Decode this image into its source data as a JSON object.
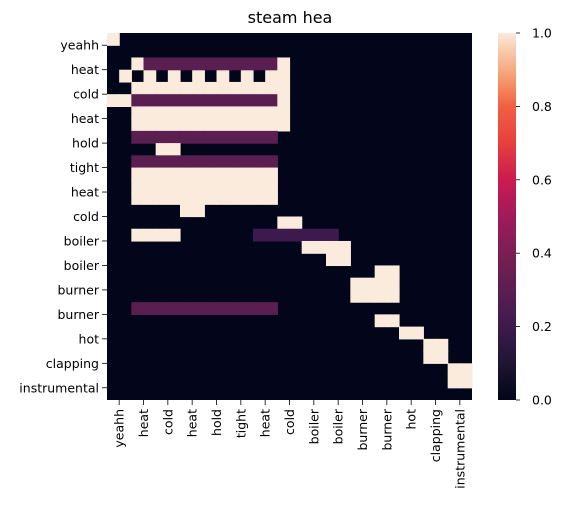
{
  "chart_data": {
    "type": "heatmap",
    "title": "steam hea",
    "xlabel": "",
    "ylabel": "",
    "row_labels": [
      "yeahh",
      "heat",
      "cold",
      "heat",
      "hold",
      "tight",
      "heat",
      "cold",
      "boiler",
      "boiler",
      "burner",
      "burner",
      "hot",
      "clapping",
      "instrumental"
    ],
    "col_labels": [
      "yeahh",
      "heat",
      "cold",
      "heat",
      "hold",
      "tight",
      "heat",
      "cold",
      "boiler",
      "boiler",
      "burner",
      "burner",
      "hot",
      "clapping",
      "instrumental"
    ],
    "colorbar": {
      "range": [
        0.0,
        1.0
      ],
      "ticks": [
        0.0,
        0.2,
        0.4,
        0.6,
        0.8,
        1.0
      ],
      "tick_labels": [
        "0.0",
        "0.2",
        "0.4",
        "0.6",
        "0.8",
        "1.0"
      ]
    },
    "colormap_stops": [
      [
        0.0,
        "#03051a"
      ],
      [
        0.1,
        "#1f1533"
      ],
      [
        0.2,
        "#3d1a4d"
      ],
      [
        0.3,
        "#5b1e51"
      ],
      [
        0.4,
        "#7a1f53"
      ],
      [
        0.5,
        "#a11a5b"
      ],
      [
        0.6,
        "#cb1b4f"
      ],
      [
        0.7,
        "#e83f3f"
      ],
      [
        0.8,
        "#f06043"
      ],
      [
        0.85,
        "#f4875e"
      ],
      [
        0.9,
        "#f6aa82"
      ],
      [
        0.95,
        "#f7c9aa"
      ],
      [
        1.0,
        "#faebdd"
      ]
    ],
    "grid_resolution": 30,
    "cells": [
      [
        0,
        0,
        1.0
      ],
      [
        2,
        2,
        1.0
      ],
      [
        3,
        1,
        1.0
      ],
      [
        3,
        3,
        1.0
      ],
      [
        3,
        5,
        1.0
      ],
      [
        3,
        7,
        1.0
      ],
      [
        3,
        9,
        1.0
      ],
      [
        3,
        11,
        1.0
      ],
      [
        3,
        13,
        1.0
      ],
      [
        2,
        3,
        0.3
      ],
      [
        2,
        4,
        0.3
      ],
      [
        2,
        5,
        0.3
      ],
      [
        2,
        6,
        0.3
      ],
      [
        2,
        7,
        0.3
      ],
      [
        2,
        8,
        0.3
      ],
      [
        2,
        9,
        0.3
      ],
      [
        2,
        10,
        0.3
      ],
      [
        2,
        11,
        0.3
      ],
      [
        2,
        12,
        0.3
      ],
      [
        2,
        13,
        0.3
      ],
      [
        4,
        2,
        1.0
      ],
      [
        4,
        3,
        1.0
      ],
      [
        4,
        4,
        1.0
      ],
      [
        4,
        5,
        1.0
      ],
      [
        4,
        6,
        1.0
      ],
      [
        4,
        7,
        1.0
      ],
      [
        4,
        8,
        1.0
      ],
      [
        4,
        9,
        1.0
      ],
      [
        4,
        10,
        1.0
      ],
      [
        4,
        11,
        1.0
      ],
      [
        4,
        12,
        1.0
      ],
      [
        4,
        13,
        1.0
      ],
      [
        5,
        0,
        1.0
      ],
      [
        5,
        1,
        1.0
      ],
      [
        5,
        2,
        0.3
      ],
      [
        5,
        3,
        0.3
      ],
      [
        5,
        4,
        0.3
      ],
      [
        5,
        5,
        0.3
      ],
      [
        5,
        6,
        0.3
      ],
      [
        5,
        7,
        0.3
      ],
      [
        5,
        8,
        0.3
      ],
      [
        5,
        9,
        0.3
      ],
      [
        5,
        10,
        0.3
      ],
      [
        5,
        11,
        0.3
      ],
      [
        5,
        12,
        0.3
      ],
      [
        5,
        13,
        0.3
      ],
      [
        6,
        2,
        1.0
      ],
      [
        6,
        3,
        1.0
      ],
      [
        6,
        4,
        1.0
      ],
      [
        6,
        5,
        1.0
      ],
      [
        6,
        6,
        1.0
      ],
      [
        6,
        7,
        1.0
      ],
      [
        6,
        8,
        1.0
      ],
      [
        6,
        9,
        1.0
      ],
      [
        6,
        10,
        1.0
      ],
      [
        6,
        11,
        1.0
      ],
      [
        6,
        12,
        1.0
      ],
      [
        6,
        13,
        1.0
      ],
      [
        7,
        2,
        1.0
      ],
      [
        7,
        3,
        1.0
      ],
      [
        7,
        4,
        1.0
      ],
      [
        7,
        5,
        1.0
      ],
      [
        7,
        6,
        1.0
      ],
      [
        7,
        7,
        1.0
      ],
      [
        7,
        8,
        1.0
      ],
      [
        7,
        9,
        1.0
      ],
      [
        7,
        10,
        1.0
      ],
      [
        7,
        11,
        1.0
      ],
      [
        7,
        12,
        1.0
      ],
      [
        7,
        13,
        1.0
      ],
      [
        2,
        14,
        1.0
      ],
      [
        3,
        14,
        1.0
      ],
      [
        4,
        14,
        1.0
      ],
      [
        5,
        14,
        1.0
      ],
      [
        6,
        14,
        1.0
      ],
      [
        7,
        14,
        1.0
      ],
      [
        8,
        2,
        0.3
      ],
      [
        8,
        3,
        0.3
      ],
      [
        8,
        4,
        0.3
      ],
      [
        8,
        5,
        0.3
      ],
      [
        8,
        6,
        0.3
      ],
      [
        8,
        7,
        0.3
      ],
      [
        8,
        8,
        0.3
      ],
      [
        8,
        9,
        0.3
      ],
      [
        8,
        10,
        0.3
      ],
      [
        8,
        11,
        0.3
      ],
      [
        8,
        12,
        0.3
      ],
      [
        8,
        13,
        0.3
      ],
      [
        9,
        4,
        1.0
      ],
      [
        9,
        5,
        1.0
      ],
      [
        10,
        2,
        0.3
      ],
      [
        10,
        3,
        0.3
      ],
      [
        10,
        4,
        0.3
      ],
      [
        10,
        5,
        0.3
      ],
      [
        10,
        6,
        0.3
      ],
      [
        10,
        7,
        0.3
      ],
      [
        10,
        8,
        0.3
      ],
      [
        10,
        9,
        0.3
      ],
      [
        10,
        10,
        0.3
      ],
      [
        10,
        11,
        0.3
      ],
      [
        10,
        12,
        0.3
      ],
      [
        10,
        13,
        0.3
      ],
      [
        11,
        2,
        1.0
      ],
      [
        11,
        3,
        1.0
      ],
      [
        11,
        4,
        1.0
      ],
      [
        11,
        5,
        1.0
      ],
      [
        11,
        6,
        1.0
      ],
      [
        11,
        7,
        1.0
      ],
      [
        11,
        8,
        1.0
      ],
      [
        11,
        9,
        1.0
      ],
      [
        11,
        10,
        1.0
      ],
      [
        11,
        11,
        1.0
      ],
      [
        11,
        12,
        1.0
      ],
      [
        11,
        13,
        1.0
      ],
      [
        12,
        2,
        1.0
      ],
      [
        12,
        3,
        1.0
      ],
      [
        12,
        4,
        1.0
      ],
      [
        12,
        5,
        1.0
      ],
      [
        12,
        6,
        1.0
      ],
      [
        12,
        7,
        1.0
      ],
      [
        12,
        8,
        1.0
      ],
      [
        12,
        9,
        1.0
      ],
      [
        12,
        10,
        1.0
      ],
      [
        12,
        11,
        1.0
      ],
      [
        12,
        12,
        1.0
      ],
      [
        12,
        13,
        1.0
      ],
      [
        13,
        2,
        1.0
      ],
      [
        13,
        3,
        1.0
      ],
      [
        13,
        4,
        1.0
      ],
      [
        13,
        5,
        1.0
      ],
      [
        13,
        6,
        1.0
      ],
      [
        13,
        7,
        1.0
      ],
      [
        13,
        8,
        1.0
      ],
      [
        13,
        9,
        1.0
      ],
      [
        13,
        10,
        1.0
      ],
      [
        13,
        11,
        1.0
      ],
      [
        13,
        12,
        1.0
      ],
      [
        13,
        13,
        1.0
      ],
      [
        14,
        6,
        1.0
      ],
      [
        14,
        7,
        1.0
      ],
      [
        15,
        14,
        1.0
      ],
      [
        15,
        15,
        1.0
      ],
      [
        16,
        2,
        1.0
      ],
      [
        16,
        3,
        1.0
      ],
      [
        16,
        4,
        1.0
      ],
      [
        16,
        5,
        1.0
      ],
      [
        16,
        12,
        0.2
      ],
      [
        16,
        13,
        0.2
      ],
      [
        16,
        14,
        0.2
      ],
      [
        16,
        15,
        0.2
      ],
      [
        16,
        16,
        0.2
      ],
      [
        16,
        17,
        0.2
      ],
      [
        16,
        18,
        0.2
      ],
      [
        17,
        16,
        1.0
      ],
      [
        17,
        17,
        1.0
      ],
      [
        17,
        18,
        1.0
      ],
      [
        17,
        19,
        1.0
      ],
      [
        18,
        18,
        1.0
      ],
      [
        18,
        19,
        1.0
      ],
      [
        19,
        22,
        1.0
      ],
      [
        19,
        23,
        1.0
      ],
      [
        20,
        20,
        1.0
      ],
      [
        20,
        21,
        1.0
      ],
      [
        20,
        22,
        1.0
      ],
      [
        20,
        23,
        1.0
      ],
      [
        21,
        20,
        1.0
      ],
      [
        21,
        21,
        1.0
      ],
      [
        21,
        22,
        1.0
      ],
      [
        21,
        23,
        1.0
      ],
      [
        22,
        2,
        0.3
      ],
      [
        22,
        3,
        0.3
      ],
      [
        22,
        4,
        0.3
      ],
      [
        22,
        5,
        0.3
      ],
      [
        22,
        6,
        0.3
      ],
      [
        22,
        7,
        0.3
      ],
      [
        22,
        8,
        0.3
      ],
      [
        22,
        9,
        0.3
      ],
      [
        22,
        10,
        0.3
      ],
      [
        22,
        11,
        0.3
      ],
      [
        22,
        12,
        0.3
      ],
      [
        22,
        13,
        0.3
      ],
      [
        23,
        22,
        1.0
      ],
      [
        23,
        23,
        1.0
      ],
      [
        24,
        24,
        1.0
      ],
      [
        24,
        25,
        1.0
      ],
      [
        25,
        26,
        1.0
      ],
      [
        25,
        27,
        1.0
      ],
      [
        26,
        26,
        1.0
      ],
      [
        26,
        27,
        1.0
      ],
      [
        27,
        28,
        1.0
      ],
      [
        27,
        29,
        1.0
      ],
      [
        28,
        28,
        1.0
      ],
      [
        28,
        29,
        1.0
      ]
    ]
  }
}
